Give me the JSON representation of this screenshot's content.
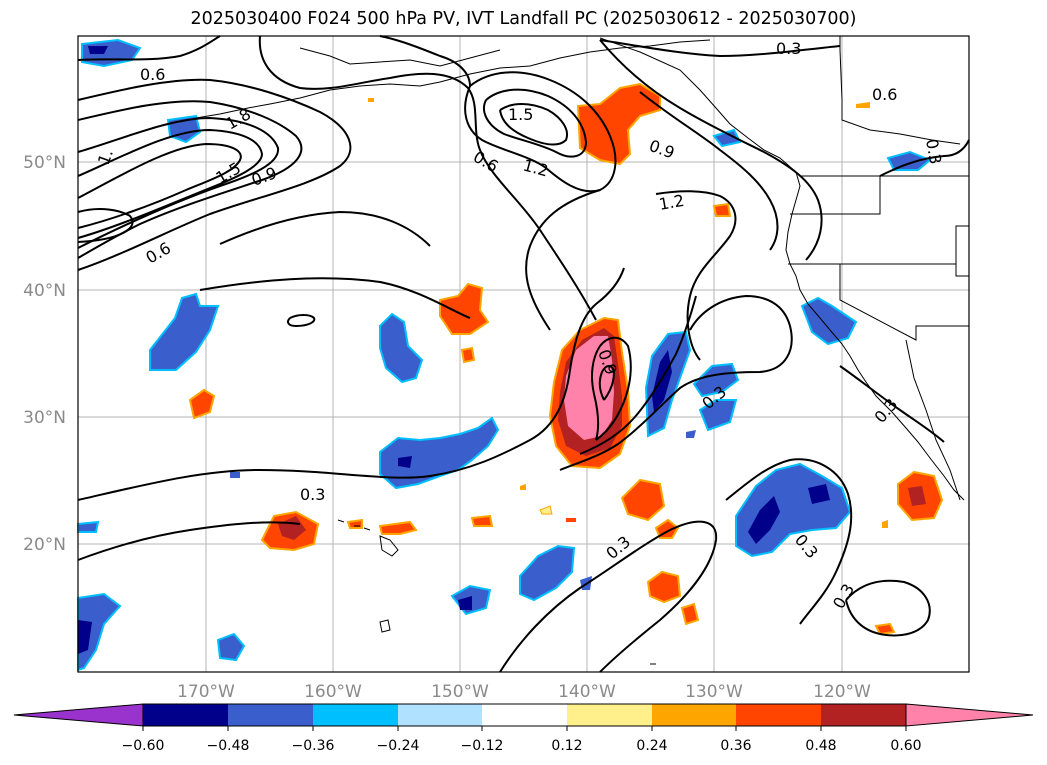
{
  "title": "2025030400 F024 500 hPa PV, IVT Landfall PC (2025030612 - 2025030700)",
  "map": {
    "lat_ticks": [
      "50°N",
      "40°N",
      "30°N",
      "20°N"
    ],
    "lon_ticks": [
      "170°W",
      "160°W",
      "150°W",
      "140°W",
      "130°W",
      "120°W"
    ],
    "grid": true,
    "coastline_color": "#000000",
    "pv_contour_labels": [
      "0.6",
      "1.8",
      "1.",
      "1.5",
      "0.9",
      "0.6",
      "1.5",
      "0.6",
      "1.2",
      "0.9",
      "0.3",
      "0.6",
      "0.3",
      "1.2",
      "0.9",
      "0.3",
      "0.3",
      "0.3",
      "0.3",
      "0.3",
      "0.3"
    ]
  },
  "colorbar": {
    "ticks": [
      "−0.60",
      "−0.48",
      "−0.36",
      "−0.24",
      "−0.12",
      "0.12",
      "0.24",
      "0.36",
      "0.48",
      "0.60"
    ],
    "colors": [
      "#9a32cd",
      "#00008b",
      "#3a5fcd",
      "#00bfff",
      "#b0e2ff",
      "#ffffff",
      "#fff08b",
      "#ffa500",
      "#ff4500",
      "#b22222",
      "#ff82ab"
    ],
    "extend": "both"
  }
}
